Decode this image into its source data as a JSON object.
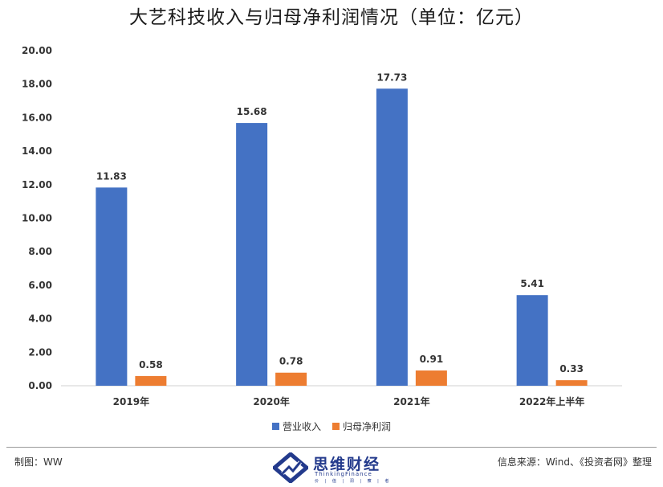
{
  "chart_data": {
    "type": "bar",
    "title": "大艺科技收入与归母净利润情况（单位：亿元）",
    "categories": [
      "2019年",
      "2020年",
      "2021年",
      "2022年上半年"
    ],
    "series": [
      {
        "name": "营业收入",
        "values": [
          11.83,
          15.68,
          17.73,
          5.41
        ],
        "color": "#4472c4"
      },
      {
        "name": "归母净利润",
        "values": [
          0.58,
          0.78,
          0.91,
          0.33
        ],
        "color": "#ed7d31"
      }
    ],
    "data_labels": [
      [
        "11.83",
        "15.68",
        "17.73",
        "5.41"
      ],
      [
        "0.58",
        "0.78",
        "0.91",
        "0.33"
      ]
    ],
    "ylim": [
      0,
      20
    ],
    "yticks": [
      "0.00",
      "2.00",
      "4.00",
      "6.00",
      "8.00",
      "10.00",
      "12.00",
      "14.00",
      "16.00",
      "18.00",
      "20.00"
    ],
    "xlabel": "",
    "ylabel": "",
    "grid": false,
    "legend_position": "bottom"
  },
  "footer": {
    "author": "制图：WW",
    "source": "信息来源：Wind、《投资者网》整理"
  },
  "logo": {
    "name": "思维财经",
    "tagline": "ThinkingFinance",
    "subline": "价 | 值 | 洞 | 察 | 者"
  }
}
